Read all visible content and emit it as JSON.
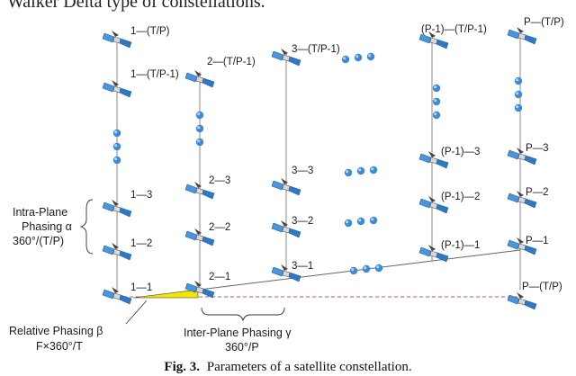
{
  "top_text": "Walker Delta type of constellations.",
  "caption": {
    "label": "Fig. 3.",
    "text": "Parameters of a satellite constellation."
  },
  "annotations": {
    "intra_plane": {
      "line1": "Intra-Plane",
      "line2": "Phasing α",
      "line3": "360°/(T/P)"
    },
    "inter_plane": {
      "line1": "Inter-Plane Phasing γ",
      "line2": "360°/P"
    },
    "relative": {
      "line1": "Relative Phasing β",
      "line2": "F×360°/T"
    }
  },
  "planes": [
    {
      "name": "plane-1",
      "labels": [
        "1—(T/P)",
        "1—(T/P-1)",
        "1—3",
        "1—2",
        "1—1"
      ]
    },
    {
      "name": "plane-2",
      "labels": [
        "2—(T/P-1)",
        "2—3",
        "2—2",
        "2—1"
      ]
    },
    {
      "name": "plane-3",
      "labels": [
        "3—(T/P-1)",
        "3—3",
        "3—2",
        "3—1"
      ]
    },
    {
      "name": "plane-P-1",
      "labels": [
        "(P-1)—(T/P-1)",
        "(P-1)—3",
        "(P-1)—2",
        "(P-1)—1"
      ]
    },
    {
      "name": "plane-P",
      "labels": [
        "P—(T/P)",
        "P—3",
        "P—2",
        "P—1",
        "P—(T/P)"
      ]
    }
  ],
  "colors": {
    "satellite_body": "#2f78c4",
    "satellite_panel": "#4a96dc",
    "dot": "#3a8ad6",
    "triangle": "#f4e400",
    "dashed_line": "#e04848",
    "lines": "#8a8a8a"
  }
}
